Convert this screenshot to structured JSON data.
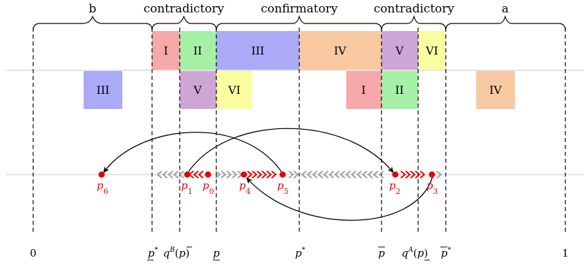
{
  "regions": {
    "b": "b",
    "contradictory_left": "contradictory",
    "confirmatory": "confirmatory",
    "contradictory_right": "contradictory",
    "a": "a"
  },
  "top_row_boxes": [
    {
      "label": "I",
      "color": "#f7a8a8"
    },
    {
      "label": "II",
      "color": "#a6f0a6"
    },
    {
      "label": "III",
      "color": "#aaaaf7"
    },
    {
      "label": "IV",
      "color": "#f8c9a0"
    },
    {
      "label": "V",
      "color": "#cda6d6"
    },
    {
      "label": "VI",
      "color": "#fcfca0"
    }
  ],
  "bottom_row_boxes": [
    {
      "label": "III",
      "color": "#aaaaf7"
    },
    {
      "label": "V",
      "color": "#cda6d6"
    },
    {
      "label": "VI",
      "color": "#fcfca0"
    },
    {
      "label": "I",
      "color": "#f7a8a8"
    },
    {
      "label": "II",
      "color": "#a6f0a6"
    },
    {
      "label": "IV",
      "color": "#f8c9a0"
    }
  ],
  "points": [
    "p6",
    "p1",
    "p0",
    "p4",
    "p5",
    "p2",
    "p3"
  ],
  "axis_labels": [
    "0",
    "p*",
    "qB(p̄)",
    "p",
    "p*",
    "p̄",
    "qA(p)",
    "p̄*",
    "1"
  ],
  "colors": {
    "point": "#e60000",
    "arrow_gray": "#a0a0a0",
    "arrow_red": "#e60000"
  }
}
